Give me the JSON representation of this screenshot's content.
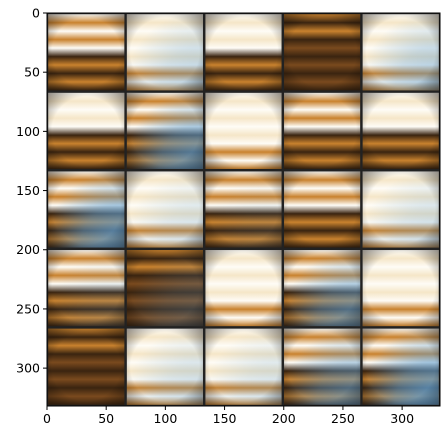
{
  "image": {
    "description": "5x5 grid of blurry generated image tiles (sepia/brown, white, and blue tones) shown with matplotlib-style axes",
    "grid_rows": 5,
    "grid_cols": 5,
    "extent_max": 332,
    "separator_color": "#222222",
    "palette": {
      "dark_brown": "#3a2410",
      "brown": "#7a4a1e",
      "amber": "#c9822e",
      "cream": "#f5e6c8",
      "white": "#fefcf6",
      "blue": "#5f9ccd"
    },
    "tiles": [
      {
        "style": "warm-stripes",
        "blue": 0
      },
      {
        "style": "bright",
        "blue": 0.45
      },
      {
        "style": "bright-top-dark-bottom",
        "blue": 0
      },
      {
        "style": "dark",
        "blue": 0
      },
      {
        "style": "bright",
        "blue": 0.55
      },
      {
        "style": "bright-top-dark-bottom",
        "blue": 0
      },
      {
        "style": "warm-stripes",
        "blue": 0.85
      },
      {
        "style": "bright",
        "blue": 0
      },
      {
        "style": "warm-stripes",
        "blue": 0
      },
      {
        "style": "bright-top-dark-bottom",
        "blue": 0
      },
      {
        "style": "warm-stripes",
        "blue": 0.9
      },
      {
        "style": "bright",
        "blue": 0.3
      },
      {
        "style": "warm-stripes",
        "blue": 0.15
      },
      {
        "style": "warm-stripes",
        "blue": 0
      },
      {
        "style": "bright",
        "blue": 0.35
      },
      {
        "style": "warm-stripes",
        "blue": 0.2
      },
      {
        "style": "dark",
        "blue": 0.3
      },
      {
        "style": "bright",
        "blue": 0
      },
      {
        "style": "warm-stripes",
        "blue": 0.75
      },
      {
        "style": "bright",
        "blue": 0
      },
      {
        "style": "dark",
        "blue": 0
      },
      {
        "style": "bright",
        "blue": 0.35
      },
      {
        "style": "bright",
        "blue": 0.3
      },
      {
        "style": "warm-stripes",
        "blue": 0.7
      },
      {
        "style": "warm-stripes",
        "blue": 0.95
      }
    ]
  },
  "axes": {
    "x_ticks": [
      {
        "value": 0,
        "label": "0"
      },
      {
        "value": 50,
        "label": "50"
      },
      {
        "value": 100,
        "label": "100"
      },
      {
        "value": 150,
        "label": "150"
      },
      {
        "value": 200,
        "label": "200"
      },
      {
        "value": 250,
        "label": "250"
      },
      {
        "value": 300,
        "label": "300"
      }
    ],
    "y_ticks": [
      {
        "value": 0,
        "label": "0"
      },
      {
        "value": 50,
        "label": "50"
      },
      {
        "value": 100,
        "label": "100"
      },
      {
        "value": 150,
        "label": "150"
      },
      {
        "value": 200,
        "label": "200"
      },
      {
        "value": 250,
        "label": "250"
      },
      {
        "value": 300,
        "label": "300"
      }
    ]
  }
}
